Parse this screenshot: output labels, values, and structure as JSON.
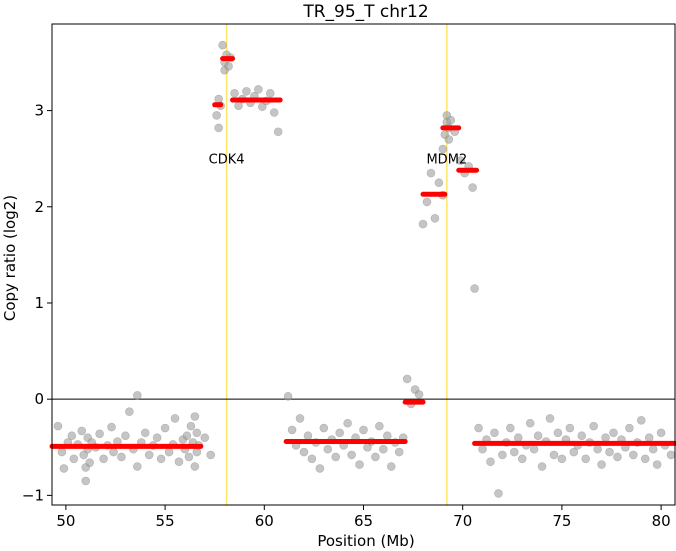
{
  "chart_data": {
    "type": "scatter",
    "title": "TR_95_T chr12",
    "xlabel": "Position (Mb)",
    "ylabel": "Copy ratio (log2)",
    "xlim": [
      49.3,
      80.7
    ],
    "ylim": [
      -1.1,
      3.9
    ],
    "x_ticks": [
      50,
      55,
      60,
      65,
      70,
      75,
      80
    ],
    "y_ticks": [
      -1,
      0,
      1,
      2,
      3
    ],
    "grid": false,
    "reference_line_y": 0,
    "colors": {
      "points": "#9e9e9e",
      "segments": "#ff0000",
      "gene_lines": "#ffe566",
      "reference_line": "#000000"
    },
    "gene_markers": [
      {
        "name": "CDK4",
        "x": 58.1,
        "label_y": 2.45
      },
      {
        "name": "MDM2",
        "x": 69.2,
        "label_y": 2.45
      }
    ],
    "segments": [
      {
        "x_start": 49.3,
        "x_end": 56.8,
        "y": -0.49
      },
      {
        "x_start": 57.5,
        "x_end": 57.8,
        "y": 3.06
      },
      {
        "x_start": 57.9,
        "x_end": 58.4,
        "y": 3.54
      },
      {
        "x_start": 58.4,
        "x_end": 60.8,
        "y": 3.11
      },
      {
        "x_start": 61.1,
        "x_end": 67.1,
        "y": -0.44
      },
      {
        "x_start": 67.1,
        "x_end": 68.0,
        "y": -0.03
      },
      {
        "x_start": 68.0,
        "x_end": 69.1,
        "y": 2.13
      },
      {
        "x_start": 69.0,
        "x_end": 69.8,
        "y": 2.82
      },
      {
        "x_start": 69.8,
        "x_end": 70.7,
        "y": 2.38
      },
      {
        "x_start": 70.6,
        "x_end": 80.7,
        "y": -0.46
      }
    ],
    "points": [
      [
        49.6,
        -0.28
      ],
      [
        49.8,
        -0.55
      ],
      [
        49.9,
        -0.72
      ],
      [
        50.1,
        -0.45
      ],
      [
        50.3,
        -0.38
      ],
      [
        50.4,
        -0.62
      ],
      [
        50.6,
        -0.47
      ],
      [
        50.8,
        -0.33
      ],
      [
        50.9,
        -0.58
      ],
      [
        51.0,
        -0.71
      ],
      [
        51.0,
        -0.85
      ],
      [
        51.1,
        -0.52
      ],
      [
        51.1,
        -0.4
      ],
      [
        51.2,
        -0.66
      ],
      [
        51.3,
        -0.45
      ],
      [
        51.5,
        -0.5
      ],
      [
        51.7,
        -0.36
      ],
      [
        51.9,
        -0.62
      ],
      [
        52.1,
        -0.48
      ],
      [
        52.3,
        -0.29
      ],
      [
        52.4,
        -0.55
      ],
      [
        52.6,
        -0.44
      ],
      [
        52.8,
        -0.6
      ],
      [
        53.0,
        -0.38
      ],
      [
        53.2,
        -0.13
      ],
      [
        53.4,
        -0.52
      ],
      [
        53.6,
        -0.7
      ],
      [
        53.6,
        0.04
      ],
      [
        53.8,
        -0.45
      ],
      [
        54.0,
        -0.35
      ],
      [
        54.2,
        -0.58
      ],
      [
        54.4,
        -0.48
      ],
      [
        54.6,
        -0.4
      ],
      [
        54.8,
        -0.62
      ],
      [
        55.0,
        -0.3
      ],
      [
        55.2,
        -0.55
      ],
      [
        55.4,
        -0.47
      ],
      [
        55.5,
        -0.2
      ],
      [
        55.7,
        -0.65
      ],
      [
        55.9,
        -0.42
      ],
      [
        56.0,
        -0.52
      ],
      [
        56.1,
        -0.38
      ],
      [
        56.2,
        -0.6
      ],
      [
        56.3,
        -0.28
      ],
      [
        56.4,
        -0.45
      ],
      [
        56.5,
        -0.7
      ],
      [
        56.5,
        -0.18
      ],
      [
        56.6,
        -0.55
      ],
      [
        56.6,
        -0.35
      ],
      [
        56.7,
        -0.48
      ],
      [
        57.0,
        -0.4
      ],
      [
        57.3,
        -0.58
      ],
      [
        57.6,
        2.95
      ],
      [
        57.7,
        3.12
      ],
      [
        57.7,
        2.82
      ],
      [
        57.8,
        3.05
      ],
      [
        57.9,
        3.68
      ],
      [
        58.0,
        3.5
      ],
      [
        58.0,
        3.42
      ],
      [
        58.1,
        3.58
      ],
      [
        58.2,
        3.46
      ],
      [
        58.3,
        3.55
      ],
      [
        58.5,
        3.18
      ],
      [
        58.7,
        3.05
      ],
      [
        58.9,
        3.12
      ],
      [
        59.1,
        3.2
      ],
      [
        59.3,
        3.08
      ],
      [
        59.5,
        3.15
      ],
      [
        59.7,
        3.22
      ],
      [
        59.9,
        3.04
      ],
      [
        60.1,
        3.1
      ],
      [
        60.3,
        3.18
      ],
      [
        60.5,
        2.98
      ],
      [
        60.7,
        2.78
      ],
      [
        61.2,
        0.03
      ],
      [
        61.4,
        -0.32
      ],
      [
        61.6,
        -0.48
      ],
      [
        61.8,
        -0.2
      ],
      [
        62.0,
        -0.55
      ],
      [
        62.2,
        -0.38
      ],
      [
        62.4,
        -0.62
      ],
      [
        62.6,
        -0.45
      ],
      [
        62.8,
        -0.72
      ],
      [
        63.0,
        -0.3
      ],
      [
        63.2,
        -0.52
      ],
      [
        63.4,
        -0.42
      ],
      [
        63.6,
        -0.6
      ],
      [
        63.8,
        -0.35
      ],
      [
        64.0,
        -0.48
      ],
      [
        64.2,
        -0.25
      ],
      [
        64.4,
        -0.58
      ],
      [
        64.6,
        -0.4
      ],
      [
        64.8,
        -0.68
      ],
      [
        65.0,
        -0.32
      ],
      [
        65.2,
        -0.5
      ],
      [
        65.4,
        -0.44
      ],
      [
        65.6,
        -0.6
      ],
      [
        65.8,
        -0.28
      ],
      [
        66.0,
        -0.52
      ],
      [
        66.2,
        -0.38
      ],
      [
        66.4,
        -0.7
      ],
      [
        66.6,
        -0.45
      ],
      [
        66.8,
        -0.55
      ],
      [
        67.0,
        -0.4
      ],
      [
        67.2,
        0.21
      ],
      [
        67.4,
        -0.05
      ],
      [
        67.6,
        0.1
      ],
      [
        67.8,
        0.05
      ],
      [
        68.0,
        1.82
      ],
      [
        68.2,
        2.05
      ],
      [
        68.4,
        2.35
      ],
      [
        68.6,
        1.88
      ],
      [
        68.8,
        2.25
      ],
      [
        69.0,
        2.12
      ],
      [
        69.0,
        2.6
      ],
      [
        69.1,
        2.75
      ],
      [
        69.2,
        2.88
      ],
      [
        69.2,
        2.95
      ],
      [
        69.3,
        2.7
      ],
      [
        69.3,
        2.82
      ],
      [
        69.4,
        2.9
      ],
      [
        69.6,
        2.78
      ],
      [
        69.9,
        2.48
      ],
      [
        70.1,
        2.35
      ],
      [
        70.3,
        2.42
      ],
      [
        70.5,
        2.2
      ],
      [
        70.6,
        1.15
      ],
      [
        70.8,
        -0.3
      ],
      [
        71.0,
        -0.52
      ],
      [
        71.2,
        -0.42
      ],
      [
        71.4,
        -0.65
      ],
      [
        71.6,
        -0.35
      ],
      [
        71.8,
        -0.98
      ],
      [
        72.0,
        -0.58
      ],
      [
        72.2,
        -0.45
      ],
      [
        72.4,
        -0.3
      ],
      [
        72.6,
        -0.55
      ],
      [
        72.8,
        -0.4
      ],
      [
        73.0,
        -0.62
      ],
      [
        73.2,
        -0.48
      ],
      [
        73.4,
        -0.25
      ],
      [
        73.6,
        -0.52
      ],
      [
        73.8,
        -0.38
      ],
      [
        74.0,
        -0.7
      ],
      [
        74.2,
        -0.44
      ],
      [
        74.4,
        -0.2
      ],
      [
        74.6,
        -0.58
      ],
      [
        74.8,
        -0.35
      ],
      [
        75.0,
        -0.62
      ],
      [
        75.2,
        -0.42
      ],
      [
        75.4,
        -0.3
      ],
      [
        75.6,
        -0.55
      ],
      [
        75.8,
        -0.48
      ],
      [
        76.0,
        -0.38
      ],
      [
        76.2,
        -0.62
      ],
      [
        76.4,
        -0.45
      ],
      [
        76.6,
        -0.28
      ],
      [
        76.8,
        -0.52
      ],
      [
        77.0,
        -0.68
      ],
      [
        77.2,
        -0.4
      ],
      [
        77.4,
        -0.55
      ],
      [
        77.6,
        -0.35
      ],
      [
        77.8,
        -0.6
      ],
      [
        78.0,
        -0.42
      ],
      [
        78.2,
        -0.5
      ],
      [
        78.4,
        -0.3
      ],
      [
        78.6,
        -0.58
      ],
      [
        78.8,
        -0.45
      ],
      [
        79.0,
        -0.22
      ],
      [
        79.2,
        -0.62
      ],
      [
        79.4,
        -0.4
      ],
      [
        79.6,
        -0.52
      ],
      [
        79.8,
        -0.68
      ],
      [
        80.0,
        -0.35
      ],
      [
        80.2,
        -0.48
      ],
      [
        80.5,
        -0.58
      ]
    ]
  }
}
